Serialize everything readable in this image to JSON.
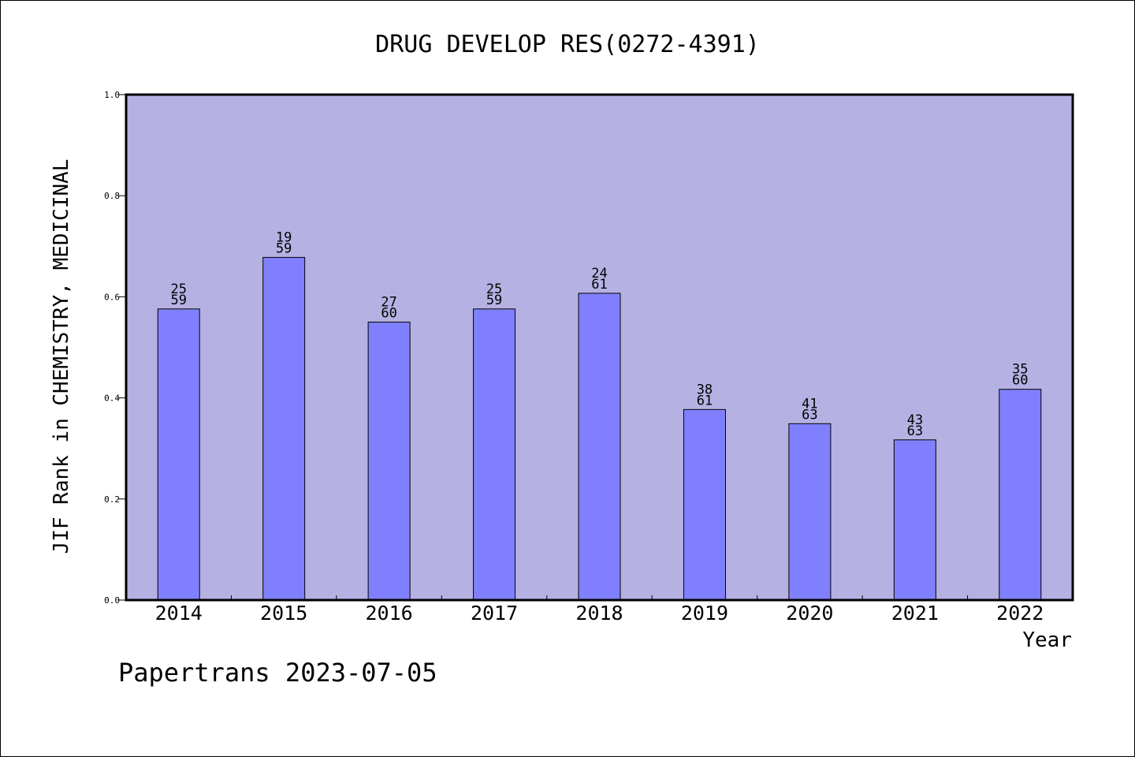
{
  "chart_data": {
    "type": "bar",
    "title": "DRUG DEVELOP RES(0272-4391)",
    "xlabel": "Year",
    "ylabel": "JIF Rank in CHEMISTRY, MEDICINAL",
    "ylim": [
      0,
      1.0
    ],
    "yticks": [
      "0.0",
      "0.2",
      "0.4",
      "0.6",
      "0.8",
      "1.0"
    ],
    "grid": false,
    "categories": [
      "2014",
      "2015",
      "2016",
      "2017",
      "2018",
      "2019",
      "2020",
      "2021",
      "2022"
    ],
    "values": [
      0.576,
      0.678,
      0.55,
      0.576,
      0.607,
      0.377,
      0.349,
      0.317,
      0.417
    ],
    "bar_labels": [
      {
        "rank": "25",
        "total": "59"
      },
      {
        "rank": "19",
        "total": "59"
      },
      {
        "rank": "27",
        "total": "60"
      },
      {
        "rank": "25",
        "total": "59"
      },
      {
        "rank": "24",
        "total": "61"
      },
      {
        "rank": "38",
        "total": "61"
      },
      {
        "rank": "41",
        "total": "63"
      },
      {
        "rank": "43",
        "total": "63"
      },
      {
        "rank": "35",
        "total": "60"
      }
    ],
    "colors": {
      "plot_background": "#b6b1e3",
      "bar_fill": "#8080ff",
      "bar_stroke": "#000000"
    }
  },
  "footer": {
    "watermark": "Papertrans 2023-07-05"
  }
}
